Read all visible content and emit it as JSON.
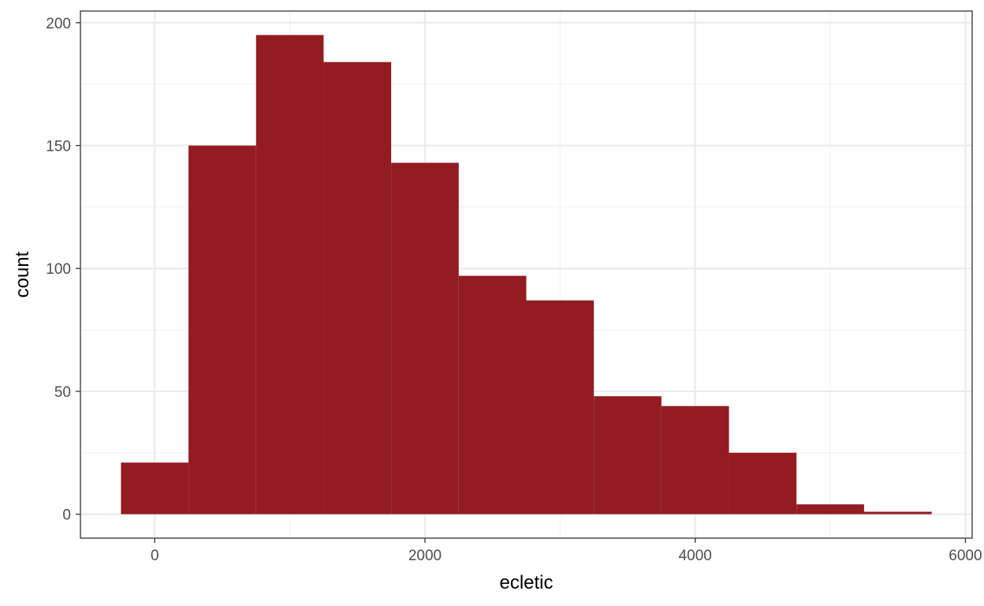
{
  "chart_data": {
    "type": "bar",
    "subtype": "histogram",
    "title": "",
    "xlabel": "ecletic",
    "ylabel": "count",
    "bins": [
      {
        "start": -250,
        "end": 250,
        "count": 21
      },
      {
        "start": 250,
        "end": 750,
        "count": 150
      },
      {
        "start": 750,
        "end": 1250,
        "count": 195
      },
      {
        "start": 1250,
        "end": 1750,
        "count": 184
      },
      {
        "start": 1750,
        "end": 2250,
        "count": 143
      },
      {
        "start": 2250,
        "end": 2750,
        "count": 97
      },
      {
        "start": 2750,
        "end": 3250,
        "count": 87
      },
      {
        "start": 3250,
        "end": 3750,
        "count": 48
      },
      {
        "start": 3750,
        "end": 4250,
        "count": 44
      },
      {
        "start": 4250,
        "end": 4750,
        "count": 25
      },
      {
        "start": 4750,
        "end": 5250,
        "count": 4
      },
      {
        "start": 5250,
        "end": 5750,
        "count": 1
      }
    ],
    "xlim": [
      -550,
      6050
    ],
    "ylim": [
      -9.75,
      204.75
    ],
    "x_ticks": [
      0,
      2000,
      4000,
      6000
    ],
    "x_tick_labels": [
      "0",
      "2000",
      "4000",
      "6000"
    ],
    "y_ticks": [
      0,
      50,
      100,
      150,
      200
    ],
    "y_tick_labels": [
      "0",
      "50",
      "100",
      "150",
      "200"
    ],
    "x_minor_ticks": [
      1000,
      3000,
      5000
    ],
    "y_minor_ticks": [
      25,
      75,
      125,
      175
    ],
    "grid": true,
    "legend": "none",
    "colors": {
      "bar_fill": "#931c22",
      "grid_major": "#ebebeb",
      "grid_minor": "#f2f2f2",
      "panel_border": "#333333",
      "tick_label": "#4d4d4d",
      "axis_title": "#000000",
      "background": "#ffffff"
    }
  }
}
